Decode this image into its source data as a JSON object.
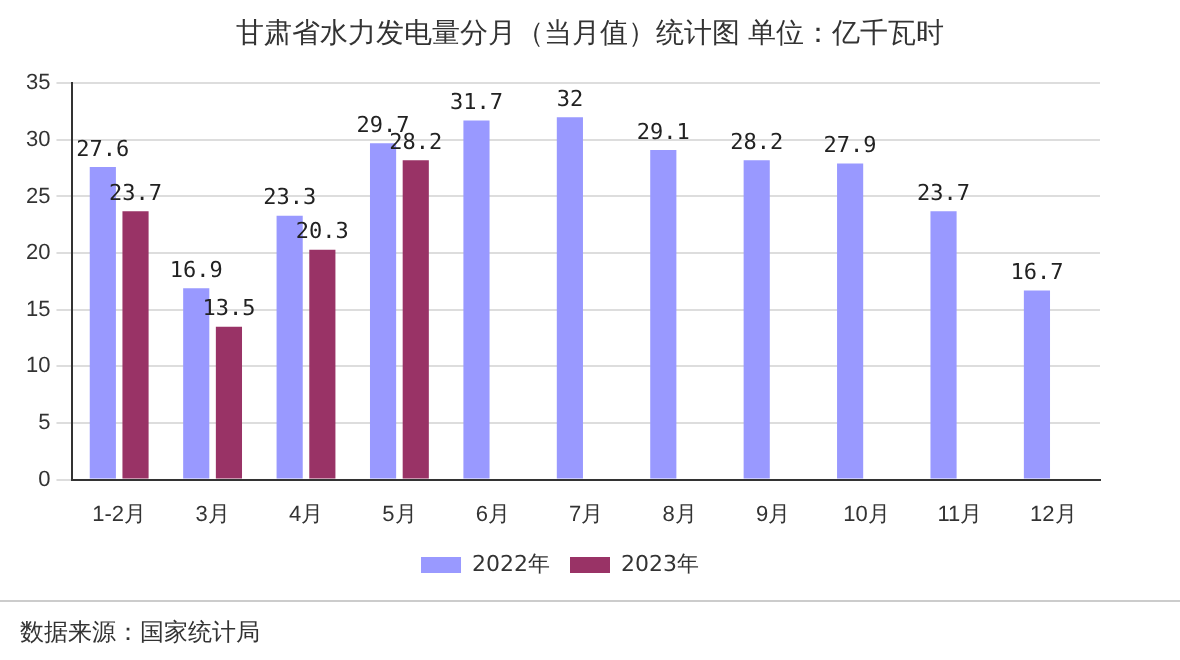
{
  "chart_data": {
    "type": "bar",
    "title": "甘肃省水力发电量分月（当月值）统计图 单位：亿千瓦时",
    "categories": [
      "1-2月",
      "3月",
      "4月",
      "5月",
      "6月",
      "7月",
      "8月",
      "9月",
      "10月",
      "11月",
      "12月"
    ],
    "series": [
      {
        "name": "2022年",
        "color": "#9999ff",
        "values": [
          27.6,
          16.9,
          23.3,
          29.7,
          31.7,
          32,
          29.1,
          28.2,
          27.9,
          23.7,
          16.7
        ]
      },
      {
        "name": "2023年",
        "color": "#993366",
        "values": [
          23.7,
          13.5,
          20.3,
          28.2,
          null,
          null,
          null,
          null,
          null,
          null,
          null
        ]
      }
    ],
    "ylim": [
      0,
      35
    ],
    "yticks": [
      0,
      5,
      10,
      15,
      20,
      25,
      30,
      35
    ],
    "grid": "y",
    "legend": "bottom",
    "data_labels": true,
    "annotations": [
      "数据来源：国家统计局"
    ]
  }
}
